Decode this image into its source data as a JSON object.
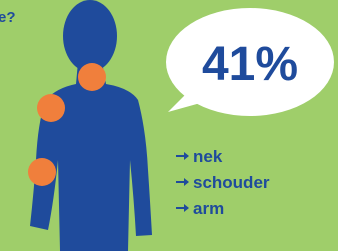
{
  "header": {
    "question_fragment": "e?"
  },
  "bubble": {
    "text": "41%"
  },
  "list": {
    "items": [
      "nek",
      "schouder",
      "arm"
    ]
  }
}
